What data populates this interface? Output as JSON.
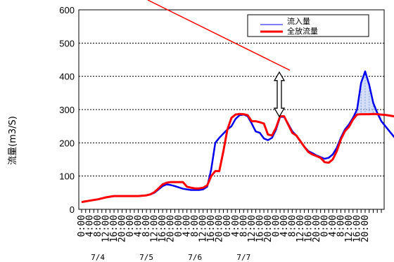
{
  "chart_data": {
    "type": "line",
    "ylabel": "流量(m3/S)",
    "ylim": [
      0,
      600
    ],
    "yticks": [
      0,
      100,
      200,
      300,
      400,
      500,
      600
    ],
    "grid": "horizontal-dashed",
    "legend_position": "top-right",
    "x_tick_labels": [
      "0:00",
      "4:00",
      "8:00",
      "12:00",
      "16:00",
      "20:00",
      "0:00",
      "4:00",
      "8:00",
      "12:00",
      "16:00",
      "20:00",
      "0:00",
      "4:00",
      "8:00",
      "12:00",
      "16:00",
      "20:00",
      "0:00",
      "4:00",
      "8:00",
      "12:00",
      "16:00",
      "20:00",
      "0:00",
      "4:00",
      "8:00",
      "12:00",
      "16:00",
      "20:00",
      "0:00",
      "4:00",
      "8:00",
      "12:00",
      "16:00",
      "20:00"
    ],
    "date_labels": [
      "7/4",
      "7/5",
      "7/6",
      "7/7"
    ],
    "hours_per_point": 2,
    "series": [
      {
        "name": "流入量",
        "color": "#0000ee",
        "values": [
          22,
          24,
          26,
          28,
          30,
          33,
          36,
          38,
          40,
          40,
          40,
          40,
          40,
          40,
          40,
          41,
          42,
          45,
          50,
          60,
          70,
          75,
          73,
          70,
          66,
          62,
          60,
          58,
          58,
          58,
          60,
          68,
          120,
          200,
          215,
          228,
          240,
          250,
          272,
          283,
          285,
          280,
          258,
          234,
          230,
          213,
          208,
          215,
          240,
          278,
          278,
          257,
          235,
          222,
          205,
          188,
          175,
          169,
          162,
          157,
          152,
          155,
          165,
          185,
          215,
          240,
          255,
          275,
          300,
          380,
          415,
          375,
          320,
          290,
          265,
          250,
          235,
          220,
          205,
          198,
          190,
          184,
          178,
          180,
          175,
          170,
          168,
          165,
          200,
          258,
          265,
          270,
          273,
          288,
          298,
          268,
          250,
          282
        ]
      },
      {
        "name": "全放流量",
        "color": "#ff0000",
        "values": [
          22,
          24,
          26,
          28,
          30,
          33,
          36,
          38,
          40,
          40,
          40,
          40,
          40,
          40,
          40,
          41,
          42,
          45,
          52,
          63,
          75,
          80,
          82,
          82,
          82,
          82,
          68,
          65,
          63,
          63,
          65,
          72,
          100,
          115,
          115,
          175,
          240,
          275,
          285,
          287,
          286,
          283,
          265,
          265,
          262,
          258,
          225,
          222,
          245,
          280,
          280,
          255,
          230,
          222,
          205,
          188,
          172,
          165,
          160,
          155,
          142,
          140,
          150,
          175,
          210,
          235,
          248,
          270,
          285,
          286,
          286,
          286,
          287,
          286,
          285,
          284,
          282,
          280,
          278,
          270,
          238,
          202,
          200,
          200,
          199,
          199,
          198,
          197,
          225,
          255,
          260,
          263,
          265,
          268,
          276,
          286,
          283,
          285
        ]
      }
    ],
    "annotation": "double-headed arrow marking the difference between inflow peak and discharge"
  }
}
